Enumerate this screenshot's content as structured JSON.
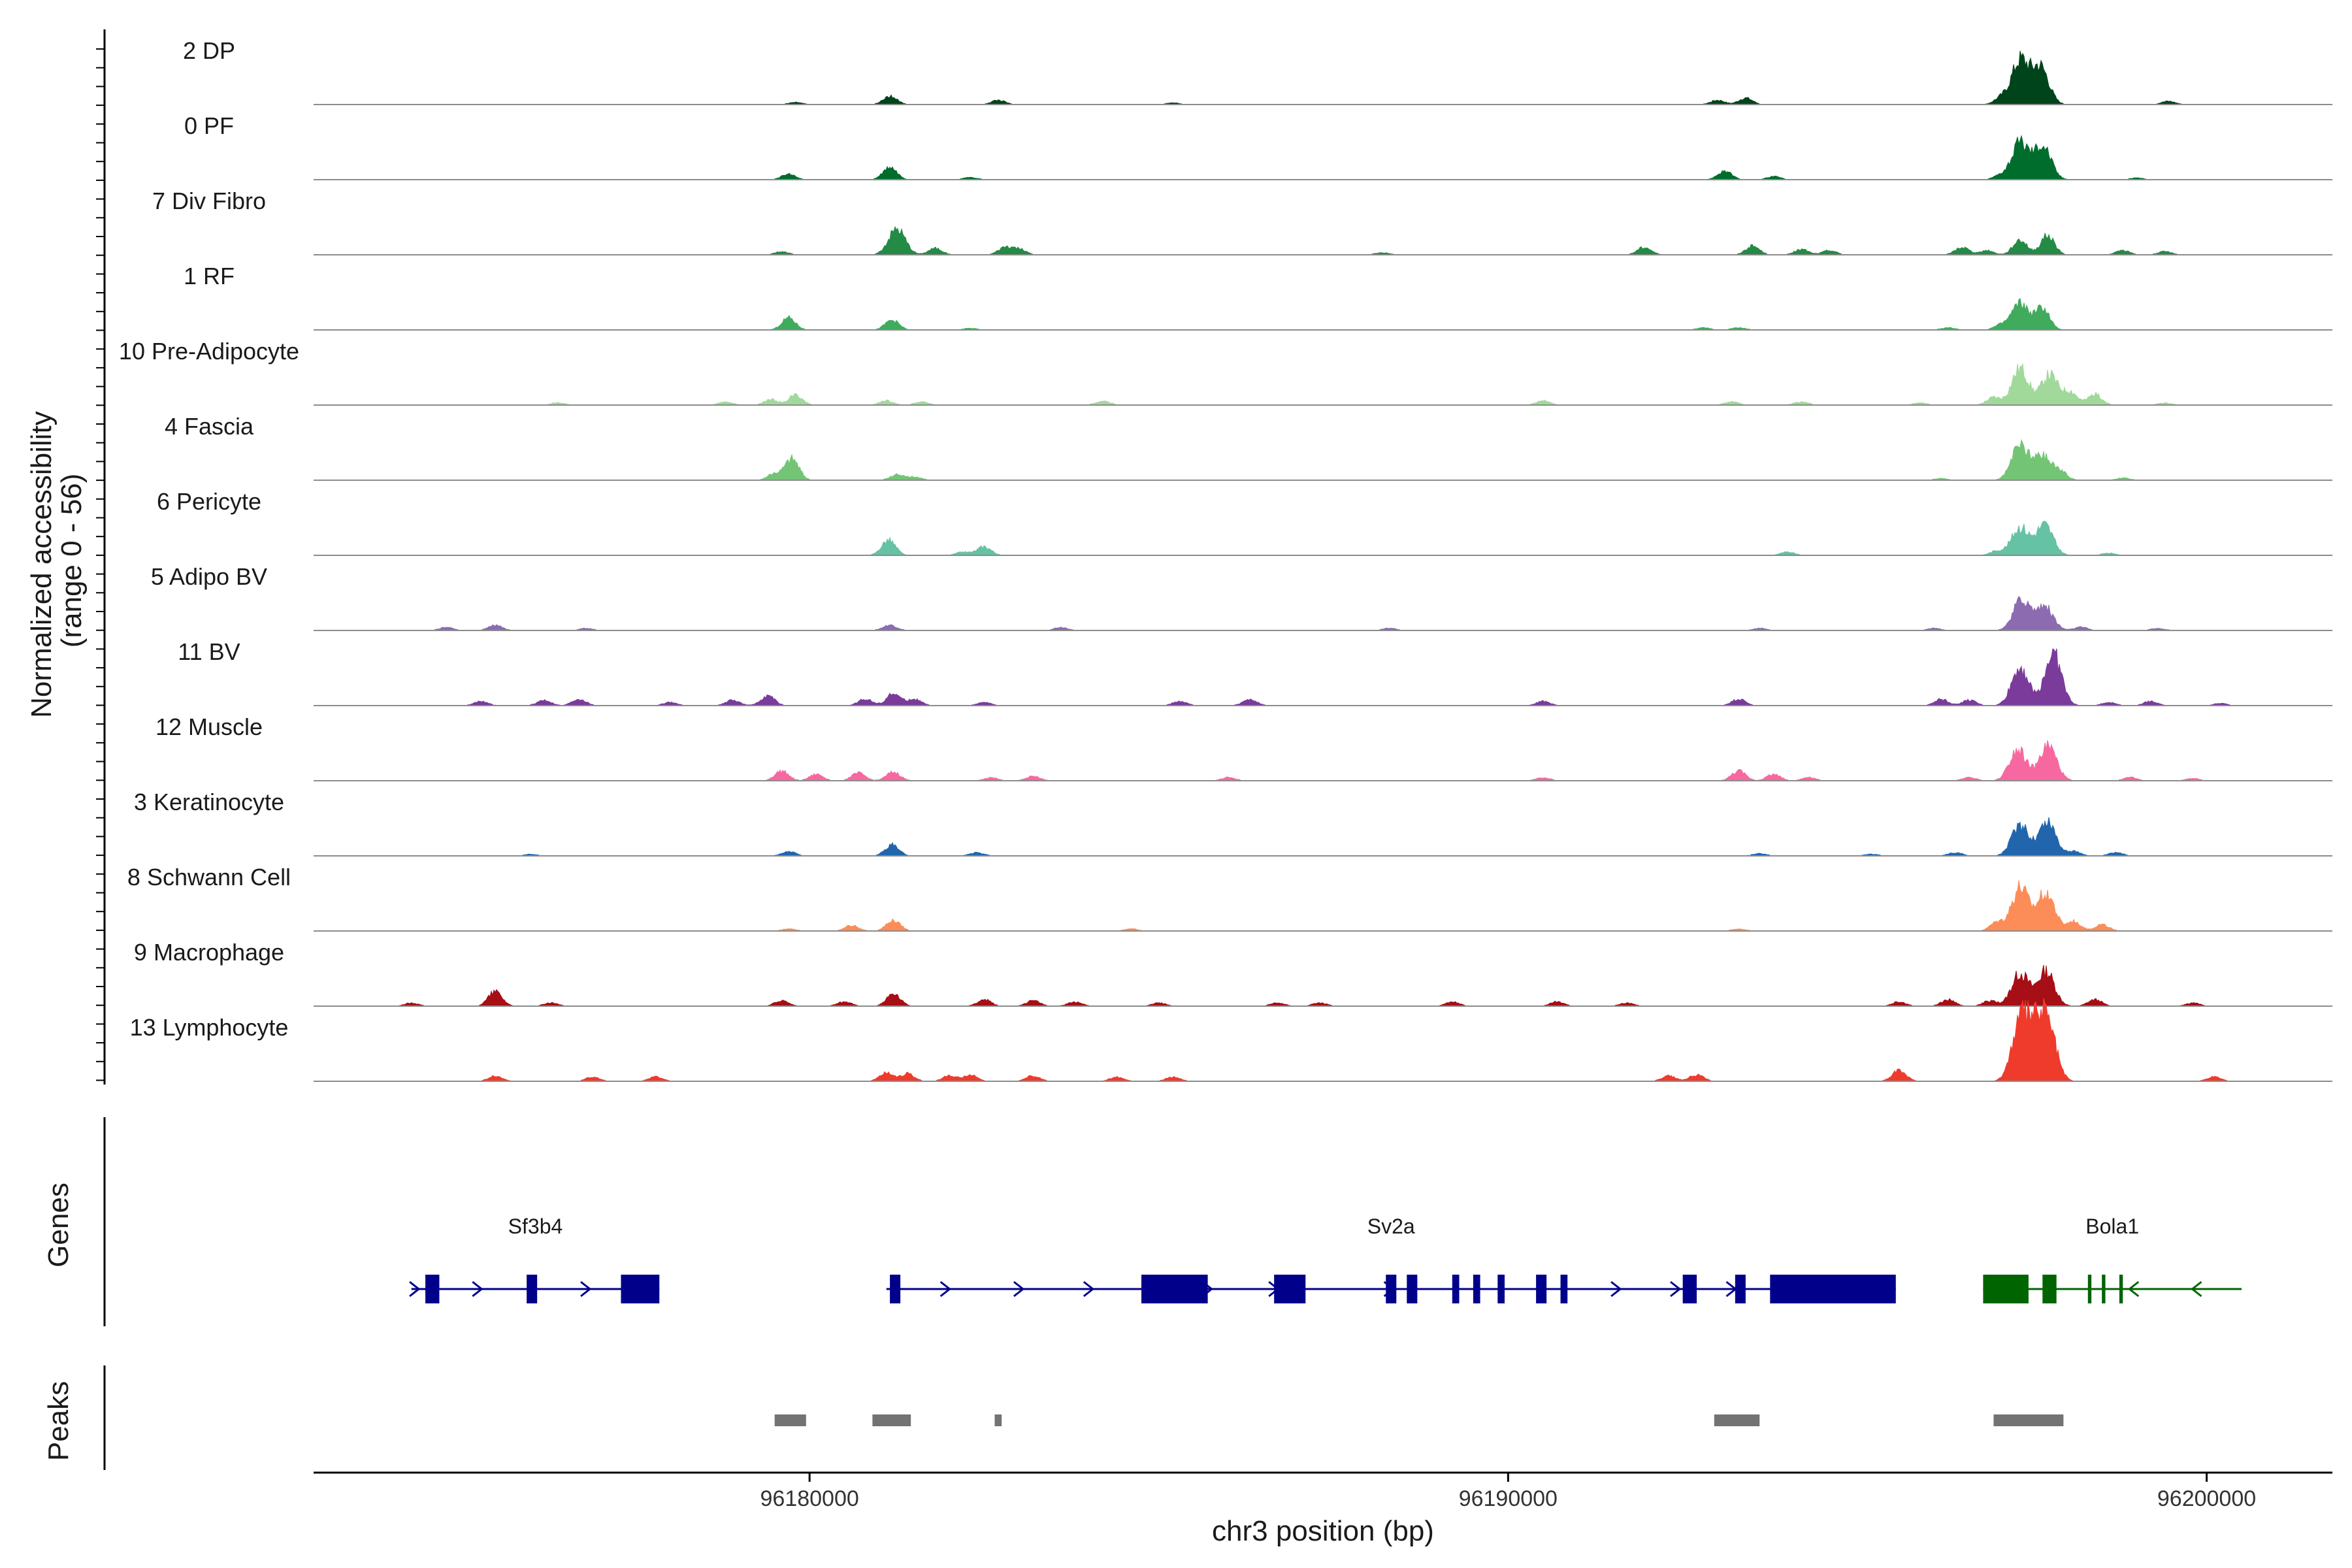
{
  "chart_data": {
    "type": "area",
    "chromosome": "chr3",
    "xlabel": "chr3 position (bp)",
    "ylabel_line1": "Normalized accessibility",
    "ylabel_line2": "(range 0 - 56)",
    "y_range": [
      0,
      56
    ],
    "xlim": [
      96172900,
      96201800
    ],
    "x_ticks": [
      96180000,
      96190000,
      96200000
    ],
    "x_tick_labels": [
      "96180000",
      "96190000",
      "96200000"
    ],
    "grid": false,
    "tracks": [
      {
        "name": "2 DP",
        "color": "#00441b",
        "peaks": [
          [
            96181150,
            8
          ],
          [
            96182700,
            4
          ],
          [
            96179800,
            2
          ],
          [
            96193400,
            6
          ],
          [
            96193000,
            4
          ],
          [
            96197330,
            40
          ],
          [
            96197620,
            34
          ],
          [
            96197060,
            6
          ],
          [
            96199450,
            3
          ],
          [
            96185200,
            1.5
          ]
        ]
      },
      {
        "name": "0 PF",
        "color": "#006d2c",
        "peaks": [
          [
            96181150,
            11
          ],
          [
            96179700,
            5
          ],
          [
            96182300,
            2
          ],
          [
            96193100,
            8
          ],
          [
            96193800,
            3
          ],
          [
            96197330,
            34
          ],
          [
            96197650,
            32
          ],
          [
            96197050,
            4
          ],
          [
            96199000,
            1.5
          ]
        ]
      },
      {
        "name": "7 Div Fibro",
        "color": "#238b45",
        "peaks": [
          [
            96181250,
            24
          ],
          [
            96181800,
            6
          ],
          [
            96182800,
            7
          ],
          [
            96183000,
            5
          ],
          [
            96179600,
            3
          ],
          [
            96188200,
            2
          ],
          [
            96191950,
            7
          ],
          [
            96193500,
            8
          ],
          [
            96194200,
            5
          ],
          [
            96194600,
            4
          ],
          [
            96196500,
            7
          ],
          [
            96197330,
            14
          ],
          [
            96197720,
            18
          ],
          [
            96196850,
            4
          ],
          [
            96198800,
            4
          ],
          [
            96199400,
            3
          ]
        ]
      },
      {
        "name": "1 RF",
        "color": "#41ab5d",
        "peaks": [
          [
            96179700,
            11
          ],
          [
            96181180,
            9
          ],
          [
            96182300,
            1.5
          ],
          [
            96192800,
            2
          ],
          [
            96193300,
            2
          ],
          [
            96197330,
            24
          ],
          [
            96197650,
            20
          ],
          [
            96197050,
            4
          ],
          [
            96196300,
            2
          ]
        ]
      },
      {
        "name": "10 Pre-Adipocyte",
        "color": "#a1d99b",
        "peaks": [
          [
            96179800,
            9
          ],
          [
            96179450,
            5
          ],
          [
            96178800,
            3
          ],
          [
            96176400,
            2
          ],
          [
            96181100,
            4
          ],
          [
            96181600,
            3
          ],
          [
            96184200,
            4
          ],
          [
            96190500,
            4
          ],
          [
            96193200,
            3
          ],
          [
            96194200,
            3
          ],
          [
            96195900,
            2
          ],
          [
            96197330,
            34
          ],
          [
            96197750,
            28
          ],
          [
            96198050,
            12
          ],
          [
            96198400,
            10
          ],
          [
            96196950,
            7
          ],
          [
            96199400,
            2
          ]
        ]
      },
      {
        "name": "4 Fascia",
        "color": "#74c476",
        "peaks": [
          [
            96179750,
            20
          ],
          [
            96179500,
            6
          ],
          [
            96181250,
            5
          ],
          [
            96181500,
            3
          ],
          [
            96197330,
            32
          ],
          [
            96197650,
            22
          ],
          [
            96197900,
            8
          ],
          [
            96198800,
            2
          ],
          [
            96196200,
            1.5
          ]
        ]
      },
      {
        "name": "6 Pericyte",
        "color": "#66c2a4",
        "peaks": [
          [
            96181130,
            14
          ],
          [
            96182500,
            8
          ],
          [
            96182200,
            3
          ],
          [
            96194000,
            3
          ],
          [
            96197330,
            26
          ],
          [
            96197680,
            28
          ],
          [
            96197000,
            4
          ],
          [
            96198600,
            2
          ]
        ]
      },
      {
        "name": "5 Adipo BV",
        "color": "#8c6bb1",
        "peaks": [
          [
            96175500,
            5
          ],
          [
            96174800,
            3
          ],
          [
            96176800,
            2
          ],
          [
            96181150,
            5
          ],
          [
            96183600,
            3
          ],
          [
            96188300,
            2
          ],
          [
            96193600,
            2
          ],
          [
            96197350,
            28
          ],
          [
            96197680,
            22
          ],
          [
            96198200,
            3
          ],
          [
            96196100,
            2
          ],
          [
            96199300,
            2
          ]
        ]
      },
      {
        "name": "11 BV",
        "color": "#7a3b9b",
        "peaks": [
          [
            96175300,
            4
          ],
          [
            96176200,
            5
          ],
          [
            96176700,
            6
          ],
          [
            96178000,
            3
          ],
          [
            96178900,
            5
          ],
          [
            96179400,
            9
          ],
          [
            96180800,
            6
          ],
          [
            96181200,
            11
          ],
          [
            96181500,
            6
          ],
          [
            96182500,
            3
          ],
          [
            96185300,
            4
          ],
          [
            96186300,
            6
          ],
          [
            96190500,
            4
          ],
          [
            96193300,
            6
          ],
          [
            96196200,
            6
          ],
          [
            96196600,
            5
          ],
          [
            96197330,
            36
          ],
          [
            96197800,
            48
          ],
          [
            96198600,
            3
          ],
          [
            96199200,
            4
          ],
          [
            96200200,
            2
          ]
        ]
      },
      {
        "name": "12 Muscle",
        "color": "#f768a1",
        "peaks": [
          [
            96179600,
            9
          ],
          [
            96180100,
            6
          ],
          [
            96180700,
            7
          ],
          [
            96181200,
            8
          ],
          [
            96182600,
            3
          ],
          [
            96183200,
            4
          ],
          [
            96186000,
            3
          ],
          [
            96190500,
            3
          ],
          [
            96193300,
            9
          ],
          [
            96193800,
            6
          ],
          [
            96194300,
            3
          ],
          [
            96196600,
            3
          ],
          [
            96197300,
            30
          ],
          [
            96197730,
            32
          ],
          [
            96198900,
            3
          ],
          [
            96199800,
            2
          ]
        ]
      },
      {
        "name": "3 Keratinocyte",
        "color": "#2166ac",
        "peaks": [
          [
            96181180,
            10
          ],
          [
            96179700,
            4
          ],
          [
            96182400,
            3
          ],
          [
            96176000,
            1.5
          ],
          [
            96193600,
            2
          ],
          [
            96196400,
            3
          ],
          [
            96197330,
            28
          ],
          [
            96197720,
            32
          ],
          [
            96198100,
            4
          ],
          [
            96198700,
            3
          ],
          [
            96195200,
            1.5
          ]
        ]
      },
      {
        "name": "8 Schwann Cell",
        "color": "#fc8d59",
        "peaks": [
          [
            96181200,
            10
          ],
          [
            96180600,
            5
          ],
          [
            96179700,
            2
          ],
          [
            96184600,
            2
          ],
          [
            96193300,
            2
          ],
          [
            96197330,
            40
          ],
          [
            96197700,
            36
          ],
          [
            96198100,
            9
          ],
          [
            96198500,
            6
          ],
          [
            96197000,
            8
          ]
        ]
      },
      {
        "name": "9 Macrophage",
        "color": "#a50f15",
        "peaks": [
          [
            96175500,
            14
          ],
          [
            96174300,
            3
          ],
          [
            96176300,
            3
          ],
          [
            96179600,
            5
          ],
          [
            96180500,
            4
          ],
          [
            96181200,
            11
          ],
          [
            96182500,
            6
          ],
          [
            96183200,
            5
          ],
          [
            96183800,
            4
          ],
          [
            96185000,
            3
          ],
          [
            96186700,
            3
          ],
          [
            96187300,
            3
          ],
          [
            96189200,
            4
          ],
          [
            96190700,
            4
          ],
          [
            96191700,
            3
          ],
          [
            96195600,
            4
          ],
          [
            96196300,
            6
          ],
          [
            96197330,
            30
          ],
          [
            96197700,
            32
          ],
          [
            96198400,
            6
          ],
          [
            96196900,
            5
          ],
          [
            96199800,
            3
          ]
        ]
      },
      {
        "name": "13 Lymphocyte",
        "color": "#ef3b2c",
        "peaks": [
          [
            96175500,
            5
          ],
          [
            96176900,
            4
          ],
          [
            96177800,
            4
          ],
          [
            96181100,
            8
          ],
          [
            96181400,
            7
          ],
          [
            96182000,
            5
          ],
          [
            96182300,
            6
          ],
          [
            96183200,
            5
          ],
          [
            96184400,
            4
          ],
          [
            96185200,
            4
          ],
          [
            96192300,
            5
          ],
          [
            96192700,
            6
          ],
          [
            96195600,
            10
          ],
          [
            96197330,
            54
          ],
          [
            96197730,
            48
          ],
          [
            96197550,
            38
          ],
          [
            96200100,
            4
          ]
        ]
      }
    ],
    "genes": [
      {
        "name": "Sf3b4",
        "strand": "+",
        "color": "#00008b",
        "start": 96174300,
        "end": 96177850,
        "exons": [
          [
            96174500,
            96174700
          ],
          [
            96175950,
            96176100
          ],
          [
            96177300,
            96177850
          ]
        ],
        "arrows": [
          96174350,
          96175250,
          96176800
        ]
      },
      {
        "name": "Sv2a",
        "strand": "+",
        "color": "#00008b",
        "start": 96181100,
        "end": 96195550,
        "exons": [
          [
            96181150,
            96181300
          ],
          [
            96184750,
            96185700
          ],
          [
            96186650,
            96187100
          ],
          [
            96188250,
            96188400
          ],
          [
            96188550,
            96188700
          ],
          [
            96189200,
            96189300
          ],
          [
            96189500,
            96189600
          ],
          [
            96189850,
            96189950
          ],
          [
            96190400,
            96190550
          ],
          [
            96190750,
            96190850
          ],
          [
            96192500,
            96192700
          ],
          [
            96193250,
            96193400
          ],
          [
            96193750,
            96195550
          ]
        ],
        "arrows": [
          96181950,
          96183000,
          96184000,
          96185700,
          96186650,
          96188300,
          96191550,
          96192400,
          96193200
        ]
      },
      {
        "name": "Bola1",
        "strand": "-",
        "color": "#006400",
        "start": 96196800,
        "end": 96200500,
        "exons": [
          [
            96196800,
            96197450
          ],
          [
            96197650,
            96197850
          ],
          [
            96198300,
            96198350
          ],
          [
            96198500,
            96198550
          ],
          [
            96198750,
            96198800
          ]
        ],
        "arrows": [
          96198950,
          96199850
        ]
      }
    ],
    "peaks_track": [
      [
        96179500,
        96179950
      ],
      [
        96180900,
        96181450
      ],
      [
        96182650,
        96182750
      ],
      [
        96192950,
        96193600
      ],
      [
        96196950,
        96197950
      ]
    ],
    "panel_labels": {
      "genes": "Genes",
      "peaks": "Peaks"
    }
  }
}
